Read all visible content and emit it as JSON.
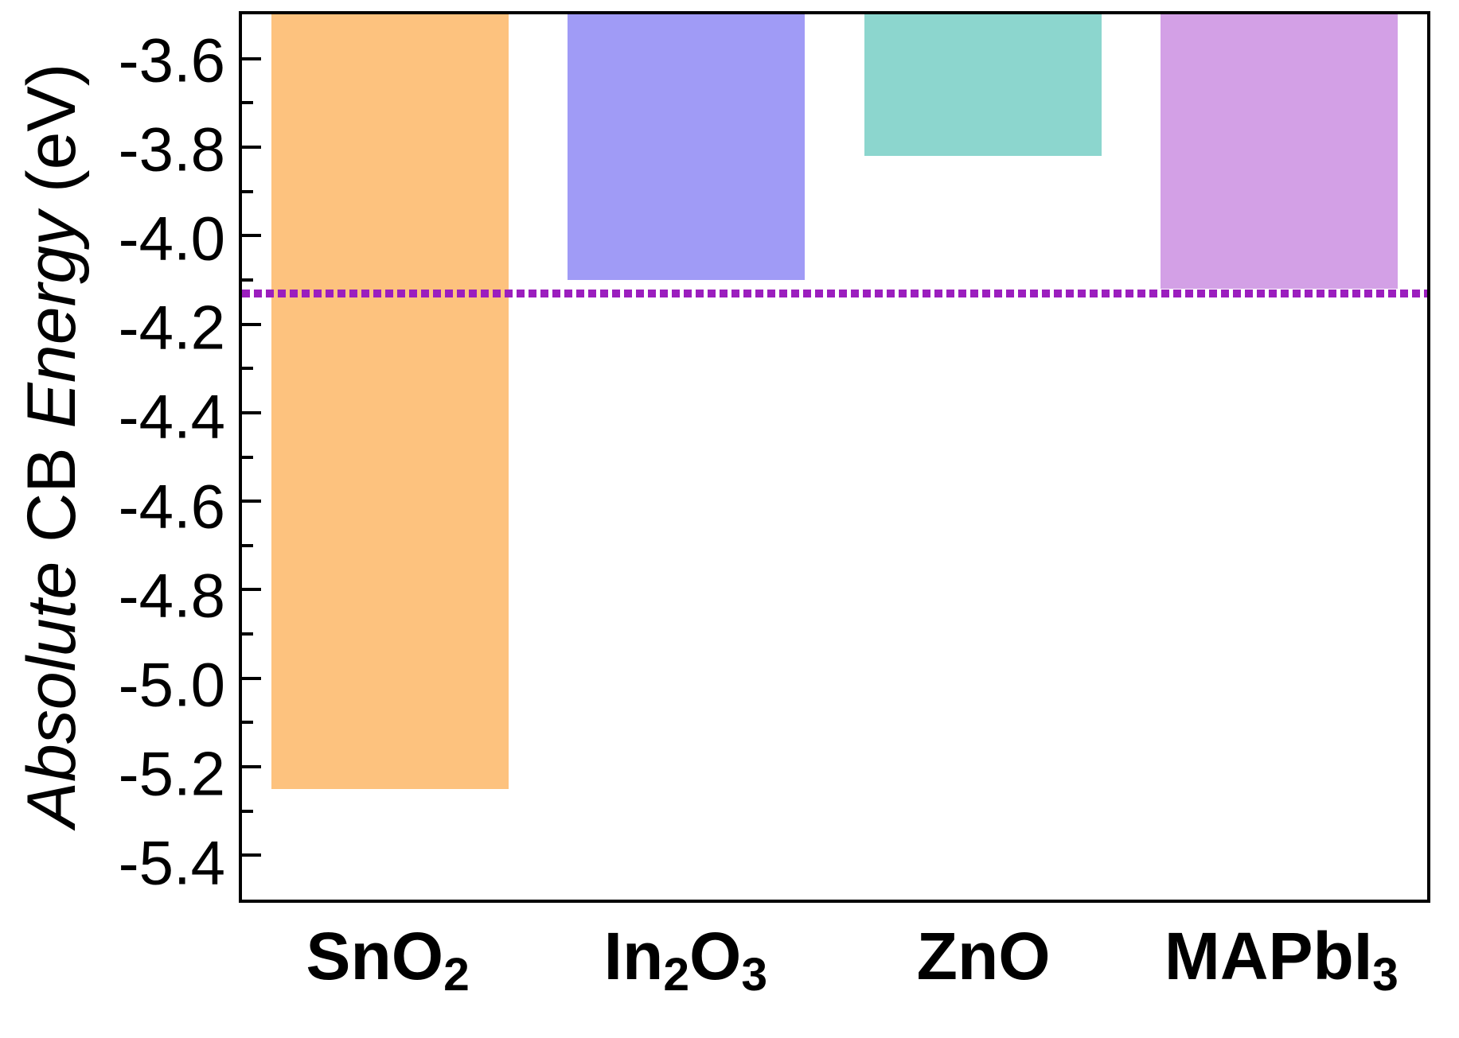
{
  "chart_data": {
    "type": "bar",
    "orientation": "vertical",
    "bars_hang_from": "top_of_axis",
    "title": "",
    "xlabel": "",
    "ylabel_parts": [
      "Absolute ",
      "CB ",
      "Energy ",
      "(eV)"
    ],
    "ylabel_italic_flags": [
      true,
      false,
      true,
      false
    ],
    "ylabel_plain": "Absolute CB Energy (eV)",
    "categories": [
      {
        "id": "SnO2",
        "segments": [
          {
            "text": "SnO",
            "sub": false
          },
          {
            "text": "2",
            "sub": true
          }
        ]
      },
      {
        "id": "In2O3",
        "segments": [
          {
            "text": "In",
            "sub": false
          },
          {
            "text": "2",
            "sub": true
          },
          {
            "text": "O",
            "sub": false
          },
          {
            "text": "3",
            "sub": true
          }
        ]
      },
      {
        "id": "ZnO",
        "segments": [
          {
            "text": "ZnO",
            "sub": false
          }
        ]
      },
      {
        "id": "MAPbI3",
        "segments": [
          {
            "text": "MAPbI",
            "sub": false
          },
          {
            "text": "3",
            "sub": true
          }
        ]
      }
    ],
    "values_eV": [
      -5.25,
      -4.1,
      -3.82,
      -4.12
    ],
    "bar_colors": [
      "#FDC27E",
      "#A09BF6",
      "#8CD6CE",
      "#D3A0E6"
    ],
    "ylim": [
      -5.5,
      -3.5
    ],
    "ytick_labels": [
      "-3.6",
      "-3.8",
      "-4.0",
      "-4.2",
      "-4.4",
      "-4.6",
      "-4.8",
      "-5.0",
      "-5.2",
      "-5.4"
    ],
    "ytick_major_values": [
      -3.6,
      -3.8,
      -4.0,
      -4.2,
      -4.4,
      -4.6,
      -4.8,
      -5.0,
      -5.2,
      -5.4
    ],
    "ytick_minor_values": [
      -3.7,
      -3.9,
      -4.1,
      -4.3,
      -4.5,
      -4.7,
      -4.9,
      -5.1,
      -5.3
    ],
    "reference_line": {
      "value_eV": -4.13,
      "style": "dotted",
      "color": "#9B1EBE"
    },
    "bar_slot_fraction": 0.8,
    "axis_color": "#000000",
    "background_color": "#FFFFFF",
    "grid": false,
    "legend": false
  }
}
